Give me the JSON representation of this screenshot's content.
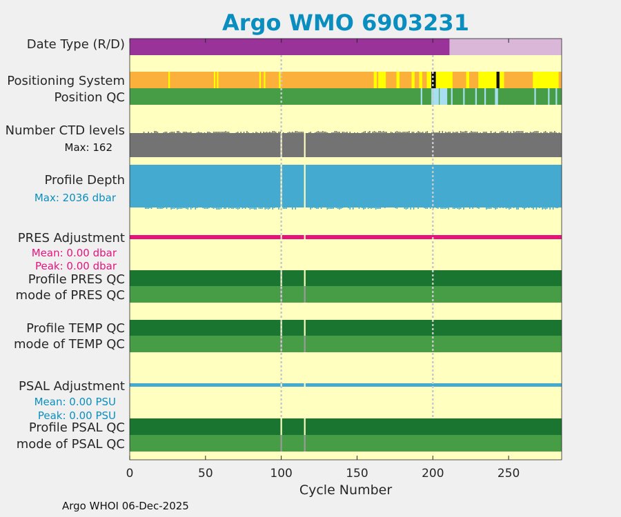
{
  "chart_data": {
    "type": "heatmap",
    "title": "Argo WMO 6903231",
    "xlabel": "Cycle Number",
    "xlim": [
      0,
      285
    ],
    "xticks": [
      "0",
      "50",
      "100",
      "150",
      "200",
      "250"
    ],
    "tick_values": [
      0,
      50,
      100,
      150,
      200,
      250
    ],
    "gridlines_x": [
      100,
      200
    ],
    "rows": {
      "date_type": {
        "label": "Date Type (R/D)",
        "segments": [
          {
            "from": 0,
            "to": 211,
            "value": "D",
            "color": "#993399"
          },
          {
            "from": 211,
            "to": 285,
            "value": "R",
            "color": "#dab6d9"
          }
        ]
      },
      "positioning_system": {
        "label": "Positioning System",
        "base_color": "#fbb03b",
        "segments": [
          {
            "from": 25.5,
            "to": 26.5,
            "color": "#ffff00"
          },
          {
            "from": 55.5,
            "to": 56.5,
            "color": "#ffff00"
          },
          {
            "from": 57.5,
            "to": 58.5,
            "color": "#ffff00"
          },
          {
            "from": 85.5,
            "to": 86.5,
            "color": "#ffff00"
          },
          {
            "from": 88.5,
            "to": 89.5,
            "color": "#ffff00"
          },
          {
            "from": 98.5,
            "to": 99.5,
            "color": "#ffff00"
          },
          {
            "from": 161,
            "to": 163,
            "color": "#ffff00"
          },
          {
            "from": 164,
            "to": 169,
            "color": "#ffff00"
          },
          {
            "from": 176,
            "to": 178,
            "color": "#ffff00"
          },
          {
            "from": 186,
            "to": 188,
            "color": "#ffff00"
          },
          {
            "from": 191,
            "to": 193,
            "color": "#ffff00"
          },
          {
            "from": 196,
            "to": 199,
            "color": "#ffff00"
          },
          {
            "from": 199,
            "to": 202,
            "color": "#111111"
          },
          {
            "from": 202,
            "to": 213,
            "color": "#ffff00"
          },
          {
            "from": 222,
            "to": 224,
            "color": "#ffff00"
          },
          {
            "from": 230,
            "to": 242,
            "color": "#ffff00"
          },
          {
            "from": 242,
            "to": 244,
            "color": "#111111"
          },
          {
            "from": 244,
            "to": 247,
            "color": "#ffff00"
          },
          {
            "from": 266,
            "to": 283,
            "color": "#ffff00"
          }
        ]
      },
      "position_qc": {
        "label": "Position QC",
        "base_color": "#479c46",
        "segments": [
          {
            "from": 192,
            "to": 193,
            "color": "#a8dff0"
          },
          {
            "from": 199,
            "to": 200,
            "color": "#a8dff0"
          },
          {
            "from": 200,
            "to": 204,
            "color": "#a8dff0"
          },
          {
            "from": 204.5,
            "to": 209.5,
            "color": "#a8dff0"
          },
          {
            "from": 212,
            "to": 213,
            "color": "#a8dff0"
          },
          {
            "from": 220,
            "to": 221,
            "color": "#a8dff0"
          },
          {
            "from": 228,
            "to": 229,
            "color": "#a8dff0"
          },
          {
            "from": 234,
            "to": 235,
            "color": "#a8dff0"
          },
          {
            "from": 241,
            "to": 243,
            "color": "#a8dff0"
          },
          {
            "from": 267,
            "to": 268,
            "color": "#a8dff0"
          },
          {
            "from": 276,
            "to": 277,
            "color": "#a8dff0"
          },
          {
            "from": 281,
            "to": 282,
            "color": "#a8dff0"
          }
        ]
      },
      "ctd_levels": {
        "label": "Number CTD levels",
        "max_label": "Max: 162",
        "max": 162,
        "color": "#737373",
        "gaps": [
          [
            99.5,
            100.5
          ],
          [
            115,
            116
          ]
        ]
      },
      "profile_depth": {
        "label": "Profile Depth",
        "max_label": "Max: 2036 dbar",
        "max": 2036,
        "color": "#44aacf",
        "gaps": [
          [
            99.5,
            100.5
          ],
          [
            115,
            116
          ]
        ]
      },
      "pres_adjustment": {
        "label": "PRES Adjustment",
        "mean_label": "Mean: 0.00 dbar",
        "peak_label": "Peak: 0.00 dbar",
        "mean": 0.0,
        "peak": 0.0,
        "color": "#e8127d",
        "gaps": [
          [
            99.5,
            100.5
          ],
          [
            115,
            116
          ]
        ]
      },
      "profile_pres_qc": {
        "label": "Profile PRES QC",
        "color": "#19752f"
      },
      "mode_pres_qc": {
        "label": "mode of PRES QC",
        "color": "#479c46"
      },
      "profile_temp_qc": {
        "label": "Profile TEMP QC",
        "color": "#19752f"
      },
      "mode_temp_qc": {
        "label": "mode of TEMP QC",
        "color": "#479c46"
      },
      "psal_adjustment": {
        "label": "PSAL Adjustment",
        "mean_label": "Mean: 0.00 PSU",
        "peak_label": "Peak: 0.00 PSU",
        "mean": 0.0,
        "peak": 0.0,
        "color": "#44aacf",
        "gaps": [
          [
            99.5,
            100.5
          ],
          [
            115,
            116
          ]
        ]
      },
      "profile_psal_qc": {
        "label": "Profile PSAL QC",
        "color": "#19752f"
      },
      "mode_psal_qc": {
        "label": "mode of PSAL QC",
        "color": "#479c46"
      }
    },
    "qc_gaps": [
      [
        99.5,
        100.5
      ],
      [
        115,
        116
      ]
    ],
    "background_color": "#ffffc0",
    "grid": true
  },
  "footer": "Argo WHOI 06-Dec-2025"
}
